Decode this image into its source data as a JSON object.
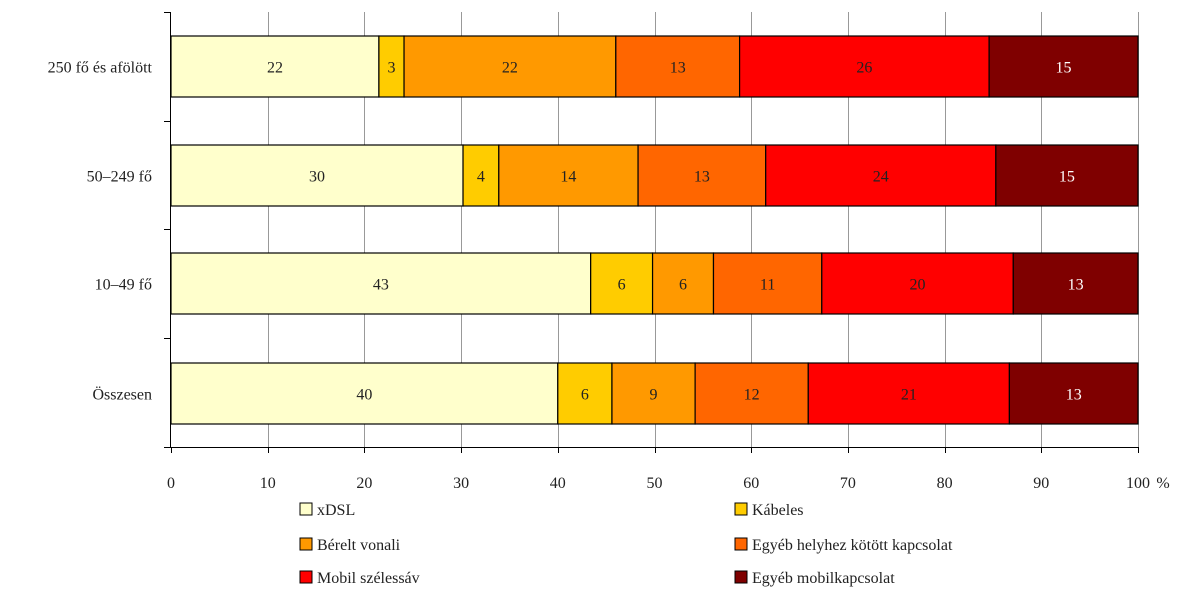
{
  "chart_data": {
    "type": "bar",
    "orientation": "horizontal",
    "stacked": true,
    "categories": [
      "250 fő és afölött",
      "50–249 fő",
      "10–49 fő",
      "Összesen"
    ],
    "series": [
      {
        "name": "xDSL",
        "color": "#FFFFCC",
        "text_color": "#222222",
        "values": [
          21.5,
          30.2,
          43.4,
          40.0
        ],
        "labels": [
          "22",
          "30",
          "43",
          "40"
        ]
      },
      {
        "name": "Kábeles",
        "color": "#FFCC00",
        "text_color": "#222222",
        "values": [
          2.6,
          3.7,
          6.4,
          5.6
        ],
        "labels": [
          "3",
          "4",
          "6",
          "6"
        ]
      },
      {
        "name": "Bérelt vonali",
        "color": "#FF9900",
        "text_color": "#222222",
        "values": [
          21.9,
          14.4,
          6.3,
          8.6
        ],
        "labels": [
          "22",
          "14",
          "6",
          "9"
        ]
      },
      {
        "name": "Egyéb helyhez kötött kapcsolat",
        "color": "#FF6600",
        "text_color": "#222222",
        "values": [
          12.8,
          13.2,
          11.2,
          11.7
        ],
        "labels": [
          "13",
          "13",
          "11",
          "12"
        ]
      },
      {
        "name": "Mobil szélessáv",
        "color": "#FF0000",
        "text_color": "#222222",
        "values": [
          25.8,
          23.8,
          19.8,
          20.8
        ],
        "labels": [
          "26",
          "24",
          "20",
          "21"
        ]
      },
      {
        "name": "Egyéb mobilkapcsolat",
        "color": "#7F0000",
        "text_color": "#FFFFFF",
        "values": [
          15.4,
          14.7,
          12.9,
          13.3
        ],
        "labels": [
          "15",
          "15",
          "13",
          "13"
        ]
      }
    ],
    "x_ticks": [
      "0",
      "10",
      "20",
      "30",
      "40",
      "50",
      "60",
      "70",
      "80",
      "90",
      "100"
    ],
    "x_unit": "%",
    "xlim": [
      0,
      100
    ],
    "grid": true,
    "legend_position": "bottom"
  }
}
